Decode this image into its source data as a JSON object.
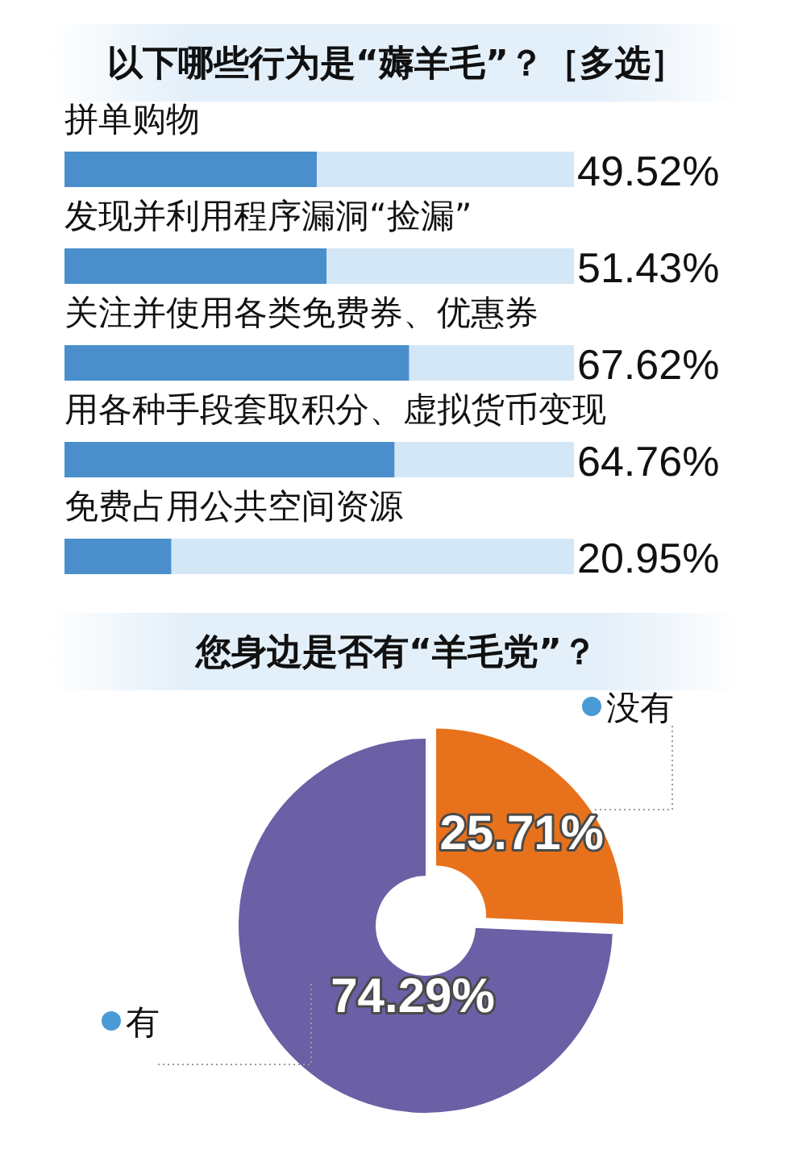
{
  "chart_data": [
    {
      "type": "bar",
      "orientation": "horizontal",
      "title": "以下哪些行为是“薅羊毛”？［多选］",
      "categories": [
        "拼单购物",
        "发现并利用程序漏洞“捡漏”",
        "关注并使用各类免费券、优惠券",
        "用各种手段套取积分、虚拟货币变现",
        "免费占用公共空间资源"
      ],
      "values": [
        49.52,
        51.43,
        67.62,
        64.76,
        20.95
      ],
      "color": "#4a8fcc",
      "value_labels": [
        "49.52%",
        "51.43%",
        "67.62%",
        "64.76%",
        "20.95%"
      ],
      "xlim": [
        0,
        100
      ]
    },
    {
      "type": "donut",
      "title": "您身边是否有“羊毛党”？",
      "categories": [
        "没有",
        "有"
      ],
      "values": [
        25.71,
        74.29
      ],
      "colors": [
        "#e8721c",
        "#6b5fa5"
      ],
      "value_labels": [
        "25.71%",
        "74.29%"
      ]
    }
  ]
}
